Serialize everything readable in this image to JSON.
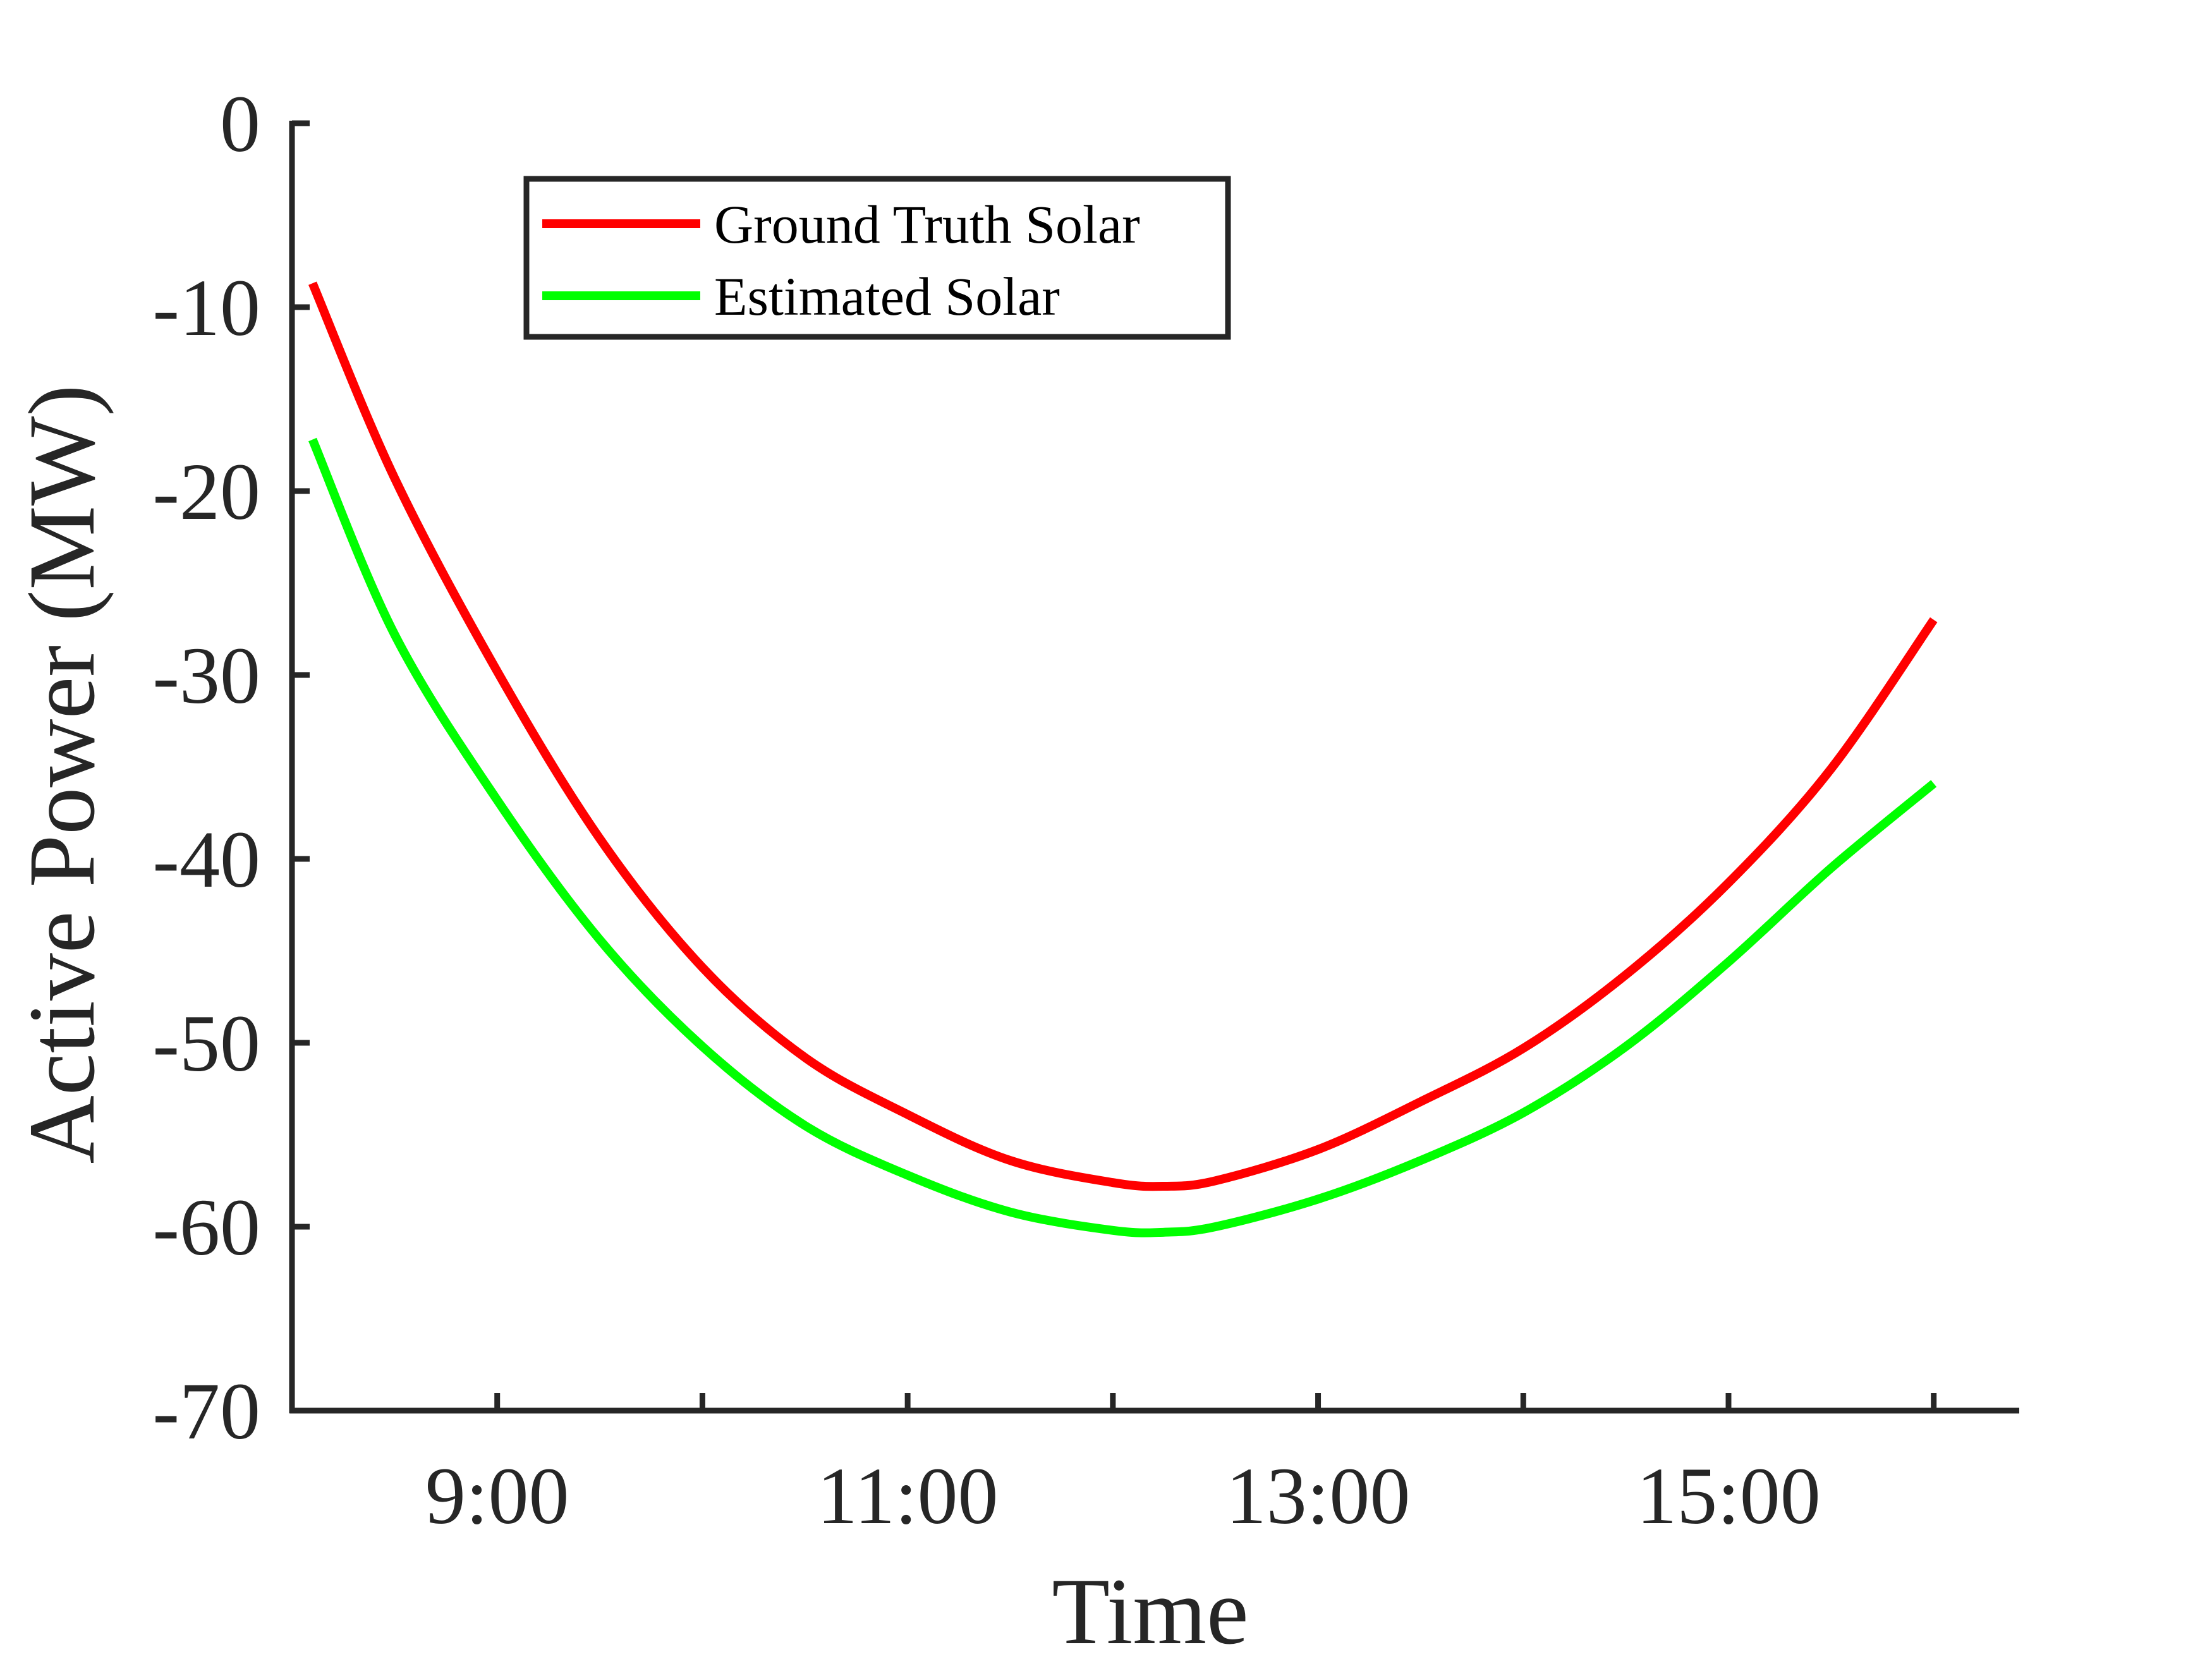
{
  "chart_data": {
    "type": "line",
    "xlabel": "Time",
    "ylabel": "Active Power (MW)",
    "xlim": [
      "8:00",
      "16:25"
    ],
    "ylim": [
      -70,
      0
    ],
    "x_ticks": [
      "9:00",
      "10:00",
      "11:00",
      "12:00",
      "13:00",
      "14:00",
      "15:00",
      "16:00"
    ],
    "x_tick_labels": [
      "9:00",
      "11:00",
      "13:00",
      "15:00"
    ],
    "y_ticks": [
      0,
      -10,
      -20,
      -30,
      -40,
      -50,
      -60,
      -70
    ],
    "grid": false,
    "legend_position": "top-left",
    "x": [
      "8:06",
      "8:30",
      "9:00",
      "9:30",
      "10:00",
      "10:30",
      "11:00",
      "11:30",
      "12:00",
      "12:15",
      "12:30",
      "13:00",
      "13:30",
      "14:00",
      "14:30",
      "15:00",
      "15:30",
      "16:00"
    ],
    "series": [
      {
        "name": "Ground Truth Solar",
        "color": "#ff0000",
        "values": [
          -8.7,
          -19.3,
          -29.8,
          -38.9,
          -45.9,
          -50.8,
          -53.9,
          -56.4,
          -57.6,
          -57.8,
          -57.5,
          -55.8,
          -53.2,
          -50.3,
          -46.3,
          -41.3,
          -35.1,
          -27.0
        ]
      },
      {
        "name": "Estimated Solar",
        "color": "#00ff00",
        "values": [
          -17.2,
          -27.8,
          -36.8,
          -44.4,
          -50.2,
          -54.5,
          -57.2,
          -59.2,
          -60.2,
          -60.3,
          -60.0,
          -58.5,
          -56.4,
          -53.8,
          -50.2,
          -45.6,
          -40.5,
          -35.9
        ]
      }
    ]
  }
}
